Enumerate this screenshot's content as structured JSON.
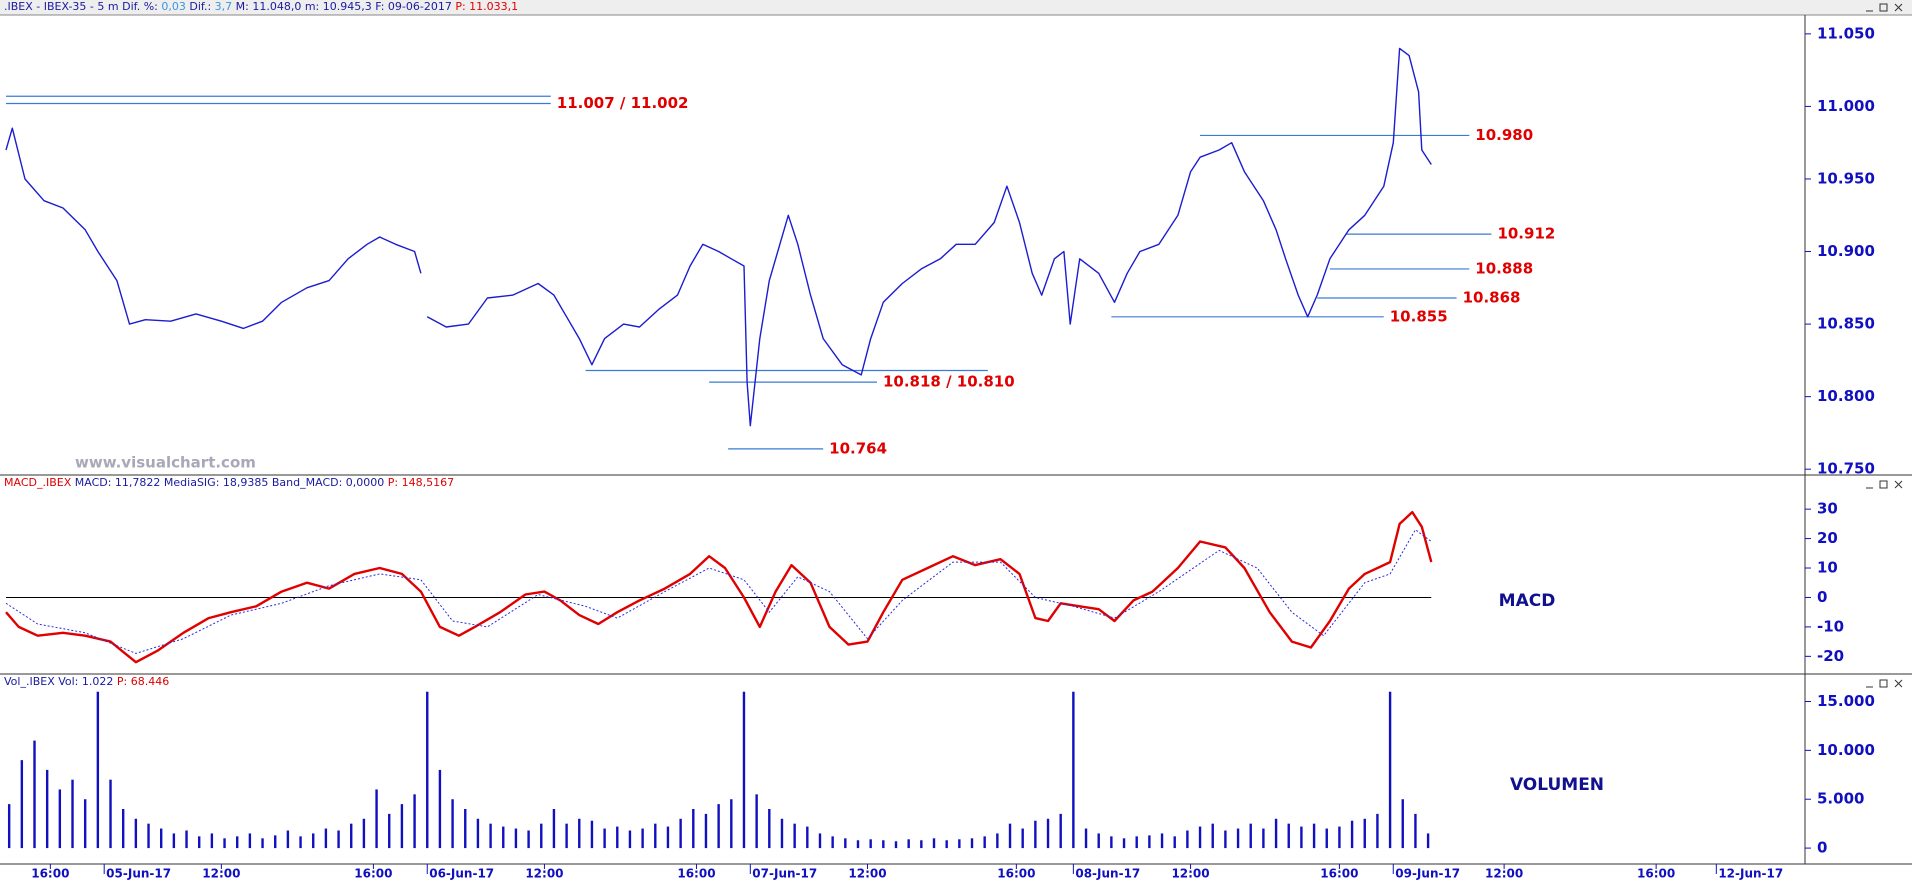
{
  "chart_data": [
    {
      "type": "line",
      "header": [
        {
          "text": ".IBEX - IBEX-35 -  5 m  Dif. %: ",
          "color": "#1a1aa0"
        },
        {
          "text": "0,03",
          "color": "#3c96dc"
        },
        {
          "text": "  Dif.: ",
          "color": "#1a1aa0"
        },
        {
          "text": "3,7",
          "color": "#3c96dc"
        },
        {
          "text": "  M: 11.048,0   m: 10.945,3   F: 09-06-2017  ",
          "color": "#1a1aa0"
        },
        {
          "text": "P: 11.033,1",
          "color": "#e00000"
        }
      ],
      "watermark": "www.visualchart.com",
      "color": "#1c1cd0",
      "x": [
        -31,
        -29,
        -25,
        -19,
        -13,
        -6,
        -2,
        4,
        8,
        13,
        21,
        29,
        37,
        44,
        50,
        56,
        64,
        71,
        77,
        83,
        87,
        92,
        98,
        100,
        101,
        102,
        108,
        115,
        121,
        129,
        137,
        142,
        146,
        150,
        154,
        158,
        164,
        169,
        175,
        181,
        185,
        189,
        194,
        198,
        202,
        203,
        204,
        207,
        210,
        216,
        219,
        223,
        227,
        233,
        239,
        242,
        246,
        252,
        258,
        264,
        269,
        275,
        281,
        285,
        289,
        293,
        296,
        300,
        303,
        305,
        308,
        314,
        319,
        323,
        327,
        333,
        339,
        343,
        346,
        352,
        356,
        360,
        366,
        370,
        373,
        377,
        380,
        383,
        387,
        393,
        398,
        404,
        407,
        409,
        412,
        415,
        416,
        419
      ],
      "values": [
        10970,
        10985,
        10950,
        10935,
        10930,
        10915,
        10900,
        10880,
        10850,
        10853,
        10852,
        10857,
        10852,
        10847,
        10852,
        10865,
        10875,
        10880,
        10895,
        10905,
        10910,
        10905,
        10900,
        10885,
        null,
        10855,
        10848,
        10850,
        10868,
        10870,
        10878,
        10870,
        10855,
        10840,
        10822,
        10840,
        10850,
        10848,
        10860,
        10870,
        10890,
        10905,
        10900,
        10895,
        10890,
        10810,
        10780,
        10840,
        10880,
        10925,
        10905,
        10870,
        10840,
        10822,
        10815,
        10840,
        10865,
        10878,
        10888,
        10895,
        10905,
        10905,
        10920,
        10945,
        10920,
        10885,
        10870,
        10895,
        10900,
        10850,
        10895,
        10885,
        10865,
        10885,
        10900,
        10905,
        10925,
        10955,
        10965,
        10970,
        10975,
        10955,
        10935,
        10915,
        10895,
        10870,
        10855,
        10870,
        10895,
        10915,
        10925,
        10945,
        10975,
        11040,
        11035,
        11010,
        10970,
        10960
      ],
      "xlim": [
        -31,
        537
      ],
      "ylim": [
        10746,
        11063
      ],
      "yticks": [
        {
          "value": 10750,
          "label": "10.750"
        },
        {
          "value": 10800,
          "label": "10.800"
        },
        {
          "value": 10850,
          "label": "10.850"
        },
        {
          "value": 10900,
          "label": "10.900"
        },
        {
          "value": 10950,
          "label": "10.950"
        },
        {
          "value": 11000,
          "label": "11.000"
        },
        {
          "value": 11050,
          "label": "11.050"
        }
      ],
      "level_color": "#3a7bd5",
      "levels": [
        {
          "label": "11.007 / 11.002",
          "lines": [
            {
              "y": 11007,
              "x": [
                -31,
                141
              ]
            },
            {
              "y": 11002,
              "x": [
                -31,
                141
              ]
            }
          ]
        },
        {
          "label": "10.980",
          "lines": [
            {
              "y": 10980,
              "x": [
                346,
                431
              ]
            }
          ]
        },
        {
          "label": "10.912",
          "lines": [
            {
              "y": 10912,
              "x": [
                392,
                438
              ]
            }
          ]
        },
        {
          "label": "10.888",
          "lines": [
            {
              "y": 10888,
              "x": [
                387,
                431
              ]
            }
          ]
        },
        {
          "label": "10.868",
          "lines": [
            {
              "y": 10868,
              "x": [
                383,
                427
              ]
            }
          ]
        },
        {
          "label": "10.855",
          "lines": [
            {
              "y": 10855,
              "x": [
                318,
                404
              ]
            }
          ]
        },
        {
          "label": "10.818 / 10.810",
          "lines": [
            {
              "y": 10818,
              "x": [
                152,
                279
              ]
            },
            {
              "y": 10810,
              "x": [
                191,
                244
              ]
            }
          ]
        },
        {
          "label": "10.764",
          "lines": [
            {
              "y": 10764,
              "x": [
                197,
                227
              ]
            }
          ]
        }
      ]
    },
    {
      "type": "line",
      "header": [
        {
          "text": "MACD_.IBEX ",
          "color": "#e00000"
        },
        {
          "text": "MACD: 11,7822   MediaSIG: 18,9385   Band_MACD: 0,0000   ",
          "color": "#1a1aa0"
        },
        {
          "text": "P: 148,5167",
          "color": "#e00000"
        }
      ],
      "label": "MACD",
      "xlim": [
        -31,
        537
      ],
      "ylim": [
        -26,
        36.5
      ],
      "yticks": [
        -20,
        -10,
        0,
        10,
        20,
        30
      ],
      "reference_line": {
        "y": 0,
        "x": [
          -31,
          419
        ]
      },
      "series": [
        {
          "color": "#e00000",
          "dashed": false,
          "x": [
            -31,
            -27,
            -21,
            -13,
            -6,
            2,
            10,
            17,
            25,
            33,
            40,
            48,
            56,
            64,
            71,
            79,
            87,
            94,
            100,
            106,
            112,
            117,
            125,
            133,
            139,
            144,
            150,
            156,
            162,
            169,
            177,
            185,
            191,
            196,
            202,
            207,
            212,
            217,
            223,
            229,
            235,
            241,
            246,
            252,
            260,
            268,
            275,
            283,
            289,
            294,
            298,
            302,
            308,
            314,
            319,
            325,
            331,
            339,
            346,
            354,
            360,
            368,
            375,
            381,
            387,
            393,
            398,
            406,
            409,
            413,
            416,
            419
          ],
          "values": [
            -5,
            -10,
            -13,
            -12,
            -13,
            -15,
            -22,
            -18,
            -12,
            -7,
            -5,
            -3,
            2,
            5,
            3,
            8,
            10,
            8,
            2,
            -10,
            -13,
            -10,
            -5,
            1,
            2,
            -1,
            -6,
            -9,
            -5,
            -1,
            3,
            8,
            14,
            10,
            0,
            -10,
            2,
            11,
            5,
            -10,
            -16,
            -15,
            -5,
            6,
            10,
            14,
            11,
            13,
            8,
            -7,
            -8,
            -2,
            -3,
            -4,
            -8,
            -1,
            2,
            10,
            19,
            17,
            10,
            -5,
            -15,
            -17,
            -8,
            3,
            8,
            12,
            25,
            29,
            24,
            12
          ]
        },
        {
          "color": "#2a2ae0",
          "dashed": true,
          "x": [
            -31,
            -21,
            -6,
            10,
            25,
            40,
            56,
            71,
            87,
            100,
            110,
            121,
            137,
            152,
            162,
            177,
            191,
            202,
            210,
            219,
            229,
            241,
            252,
            268,
            283,
            294,
            306,
            319,
            333,
            352,
            364,
            375,
            385,
            398,
            406,
            414,
            419
          ],
          "values": [
            -2,
            -9,
            -12,
            -19,
            -14,
            -6,
            -2,
            4,
            8,
            6,
            -8,
            -10,
            1,
            -3,
            -7,
            2,
            10,
            6,
            -5,
            7,
            2,
            -14,
            -1,
            12,
            12,
            0,
            -3,
            -7,
            2,
            16,
            10,
            -5,
            -13,
            5,
            8,
            23,
            19
          ]
        }
      ]
    },
    {
      "type": "bar",
      "header": [
        {
          "text": "Vol_.IBEX  Vol: 1.022  ",
          "color": "#1a1aa0"
        },
        {
          "text": "P: 68.446",
          "color": "#e00000"
        }
      ],
      "label": "VOLUMEN",
      "color": "#1010c0",
      "xlim": [
        -31,
        537
      ],
      "ylim": [
        -1628,
        16279
      ],
      "yticks": [
        0,
        {
          "value": 5000,
          "label": "5.000"
        },
        {
          "value": 10000,
          "label": "10.000"
        },
        {
          "value": 15000,
          "label": "15.000"
        }
      ],
      "x": [
        -30,
        -26,
        -22,
        -18,
        -14,
        -10,
        -6,
        -2,
        2,
        6,
        10,
        14,
        18,
        22,
        26,
        30,
        34,
        38,
        42,
        46,
        50,
        54,
        58,
        62,
        66,
        70,
        74,
        78,
        82,
        86,
        90,
        94,
        98,
        102,
        106,
        110,
        114,
        118,
        122,
        126,
        130,
        134,
        138,
        142,
        146,
        150,
        154,
        158,
        162,
        166,
        170,
        174,
        178,
        182,
        186,
        190,
        194,
        198,
        202,
        206,
        210,
        214,
        218,
        222,
        226,
        230,
        234,
        238,
        242,
        246,
        250,
        254,
        258,
        262,
        266,
        270,
        274,
        278,
        282,
        286,
        290,
        294,
        298,
        302,
        306,
        310,
        314,
        318,
        322,
        326,
        330,
        334,
        338,
        342,
        346,
        350,
        354,
        358,
        362,
        366,
        370,
        374,
        378,
        382,
        386,
        390,
        394,
        398,
        402,
        406,
        410,
        414,
        418
      ],
      "values": [
        4500,
        9000,
        11000,
        8000,
        6000,
        7000,
        5000,
        16000,
        7000,
        4000,
        3000,
        2500,
        2000,
        1500,
        1800,
        1200,
        1500,
        1000,
        1200,
        1500,
        1000,
        1300,
        1800,
        1200,
        1500,
        2000,
        1800,
        2500,
        3000,
        6000,
        3500,
        4500,
        5500,
        16000,
        8000,
        5000,
        4000,
        3000,
        2500,
        2200,
        2000,
        1800,
        2500,
        4000,
        2500,
        3000,
        2800,
        2000,
        2200,
        1800,
        2000,
        2500,
        2200,
        3000,
        4000,
        3500,
        4500,
        5000,
        16000,
        5500,
        4000,
        3000,
        2500,
        2200,
        1500,
        1200,
        1000,
        800,
        900,
        800,
        700,
        900,
        800,
        1000,
        800,
        900,
        1000,
        1200,
        1500,
        2500,
        2000,
        2800,
        3000,
        3500,
        16000,
        2000,
        1500,
        1200,
        1000,
        1200,
        1300,
        1500,
        1200,
        1800,
        2200,
        2500,
        1800,
        2000,
        2500,
        2000,
        3000,
        2500,
        2200,
        2500,
        2000,
        2200,
        2800,
        3000,
        3500,
        16000,
        5000,
        3500,
        1500
      ],
      "xticks": [
        {
          "value": -17,
          "label": "16:00"
        },
        {
          "value": 0,
          "label": "05-Jun-17"
        },
        {
          "value": 37,
          "label": "12:00"
        },
        {
          "value": 85,
          "label": "16:00"
        },
        {
          "value": 102,
          "label": "06-Jun-17"
        },
        {
          "value": 139,
          "label": "12:00"
        },
        {
          "value": 187,
          "label": "16:00"
        },
        {
          "value": 204,
          "label": "07-Jun-17"
        },
        {
          "value": 241,
          "label": "12:00"
        },
        {
          "value": 288,
          "label": "16:00"
        },
        {
          "value": 306,
          "label": "08-Jun-17"
        },
        {
          "value": 343,
          "label": "12:00"
        },
        {
          "value": 390,
          "label": "16:00"
        },
        {
          "value": 407,
          "label": "09-Jun-17"
        },
        {
          "value": 442,
          "label": "12:00"
        },
        {
          "value": 490,
          "label": "16:00"
        },
        {
          "value": 509,
          "label": "12-Jun-17"
        }
      ]
    }
  ]
}
